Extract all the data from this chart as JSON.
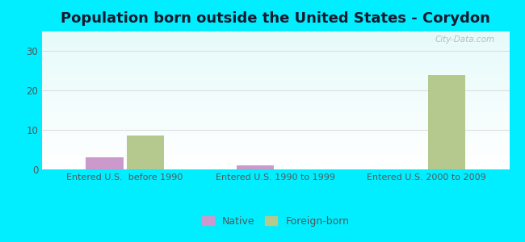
{
  "title": "Population born outside the United States - Corydon",
  "title_fontsize": 13,
  "title_fontweight": "bold",
  "title_color": "#1a1a2e",
  "background_color": "#00eeff",
  "groups": [
    "Entered U.S.  before 1990",
    "Entered U.S. 1990 to 1999",
    "Entered U.S. 2000 to 2009"
  ],
  "native_values": [
    3,
    1,
    0
  ],
  "foreign_values": [
    8.5,
    0,
    24
  ],
  "native_color": "#cc99cc",
  "foreign_color": "#b5c98e",
  "ylim": [
    0,
    35
  ],
  "yticks": [
    0,
    10,
    20,
    30
  ],
  "bar_width": 0.25,
  "legend_native": "Native",
  "legend_foreign": "Foreign-born",
  "grid_color": "#dddddd",
  "watermark": "City-Data.com",
  "tick_color": "#555555",
  "tick_fontsize": 8.5
}
